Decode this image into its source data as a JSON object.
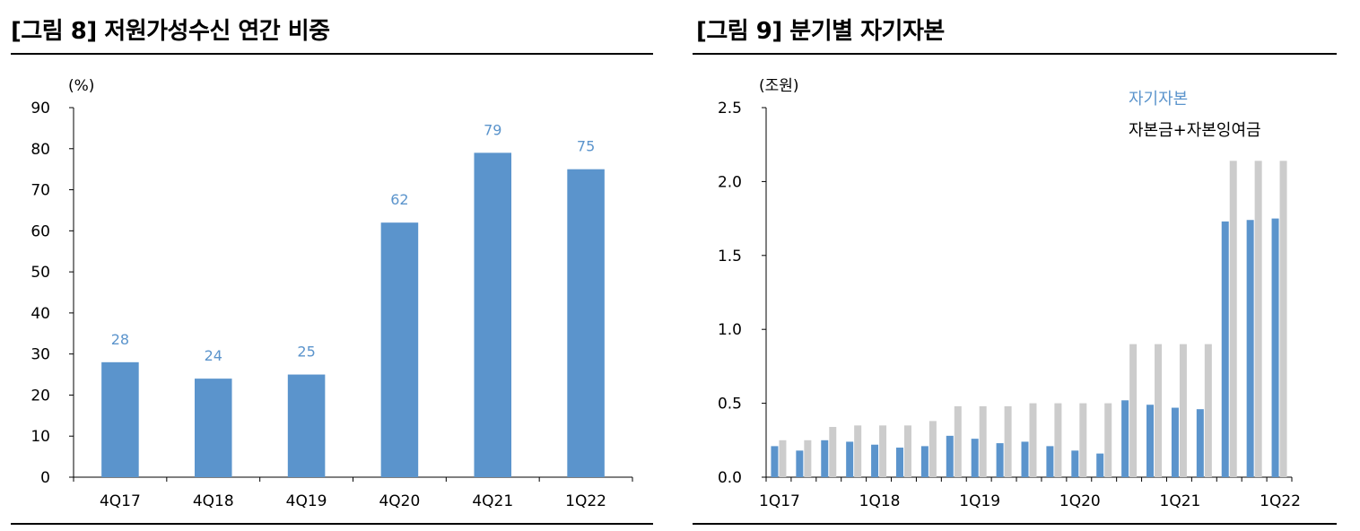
{
  "figures": [
    {
      "title": "[그림 8] 저원가성수신 연간 비중"
    },
    {
      "title": "[그림 9] 분기별 자기자본"
    }
  ],
  "colors": {
    "blue": "#5B94CC",
    "gray": "#CCCCCC",
    "label_blue": "#5B94CC",
    "rule": "#000000"
  },
  "chart_data": [
    {
      "type": "bar",
      "unit_label": "(%)",
      "categories": [
        "4Q17",
        "4Q18",
        "4Q19",
        "4Q20",
        "4Q21",
        "1Q22"
      ],
      "values": [
        28,
        24,
        25,
        62,
        79,
        75
      ],
      "data_labels": [
        "28",
        "24",
        "25",
        "62",
        "79",
        "75"
      ],
      "ylim": [
        0,
        90
      ],
      "yticks": [
        0,
        10,
        20,
        30,
        40,
        50,
        60,
        70,
        80,
        90
      ],
      "ytick_labels": [
        "0",
        "10",
        "20",
        "30",
        "40",
        "50",
        "60",
        "70",
        "80",
        "90"
      ],
      "grid": false
    },
    {
      "type": "bar",
      "unit_label": "(조원)",
      "x": [
        "1Q17",
        "2Q17",
        "3Q17",
        "4Q17",
        "1Q18",
        "2Q18",
        "3Q18",
        "4Q18",
        "1Q19",
        "2Q19",
        "3Q19",
        "4Q19",
        "1Q20",
        "2Q20",
        "3Q20",
        "4Q20",
        "1Q21",
        "2Q21",
        "3Q21",
        "4Q21",
        "1Q22"
      ],
      "xtick_labels": [
        "1Q17",
        "1Q18",
        "1Q19",
        "1Q20",
        "1Q21",
        "1Q22"
      ],
      "xtick_every": 4,
      "series": [
        {
          "name": "자기자본",
          "color": "#5B94CC",
          "values": [
            0.21,
            0.18,
            0.25,
            0.24,
            0.22,
            0.2,
            0.21,
            0.28,
            0.26,
            0.23,
            0.24,
            0.21,
            0.18,
            0.16,
            0.52,
            0.49,
            0.47,
            0.46,
            1.73,
            1.74,
            1.75
          ]
        },
        {
          "name": "자본금+자본잉여금",
          "color": "#CCCCCC",
          "values": [
            0.25,
            0.25,
            0.34,
            0.35,
            0.35,
            0.35,
            0.38,
            0.48,
            0.48,
            0.48,
            0.5,
            0.5,
            0.5,
            0.5,
            0.9,
            0.9,
            0.9,
            0.9,
            2.14,
            2.14,
            2.14
          ]
        }
      ],
      "ylim": [
        0,
        2.5
      ],
      "yticks": [
        0,
        0.5,
        1.0,
        1.5,
        2.0,
        2.5
      ],
      "ytick_labels": [
        "0.0",
        "0.5",
        "1.0",
        "1.5",
        "2.0",
        "2.5"
      ],
      "legend": "top-right",
      "grid": false
    }
  ]
}
